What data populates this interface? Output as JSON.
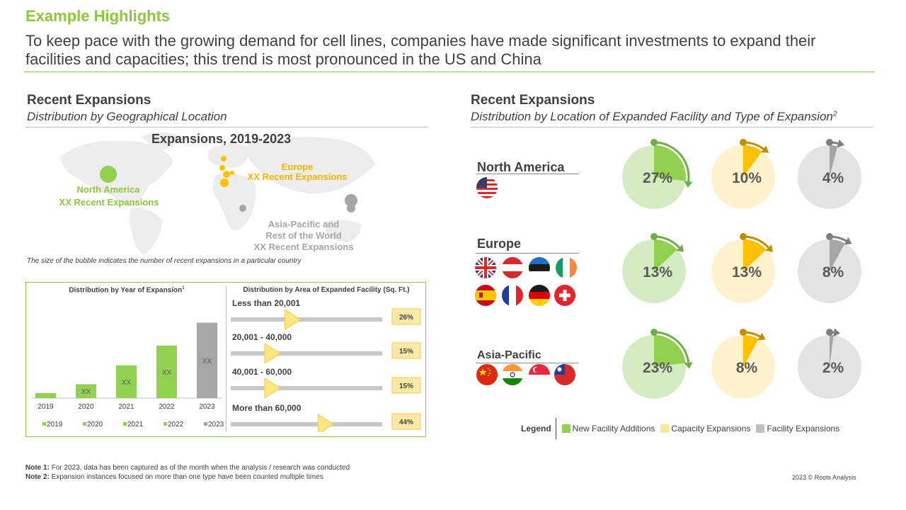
{
  "header": {
    "kicker": "Example Highlights",
    "headline": "To keep pace with the growing demand for cell lines, companies have made significant investments to expand their facilities and capacities; this trend is most pronounced in the US and China"
  },
  "left": {
    "title": "Recent Expansions",
    "subtitle": "Distribution by Geographical Location",
    "map": {
      "title": "Expansions, 2019-2023",
      "north_america": {
        "name": "North America",
        "count": "XX Recent Expansions"
      },
      "europe": {
        "name": "Europe",
        "count": "XX Recent Expansions"
      },
      "asia_pacific": {
        "line1": "Asia-Pacific and",
        "line2": "Rest of the World",
        "line3": "XX Recent Expansions"
      },
      "note": "The size of the bubble indicates the number of recent expansions in a particular country"
    },
    "year_chart_title": "Distribution by Year of Expansion",
    "year_chart_title_sup": "1",
    "area_chart_title": "Distribution by Area of Expanded Facility (Sq. Ft.)"
  },
  "right": {
    "title": "Recent Expansions",
    "subtitle": "Distribution by Location of Expanded Facility and Type of Expansion",
    "subtitle_sup": "2",
    "regions": {
      "north_america": "North America",
      "europe": "Europe",
      "asia_pacific": "Asia-Pacific"
    },
    "legend": {
      "title": "Legend",
      "items": [
        {
          "label": "New Facility Additions",
          "color": "#92d050"
        },
        {
          "label": "Capacity Expansions",
          "color": "#ffe699"
        },
        {
          "label": "Facility Expansions",
          "color": "#bfbfbf"
        }
      ]
    }
  },
  "notes": {
    "note1_label": "Note 1:",
    "note1_text": "For 2023, data has been captured as of the month when the analysis / research was conducted",
    "note2_label": "Note 2:",
    "note2_text": "Expansion instances focused on more than one type have been counted multiple times"
  },
  "copyright": "2023 © Roots Analysis",
  "colors": {
    "green": "#92d050",
    "green_dark": "#70ad47",
    "yellow": "#ffc000",
    "yellow_light": "#fff2cc",
    "gray": "#a6a6a6",
    "gray_light": "#d9d9d9",
    "accent": "#8dc63f"
  },
  "chart_data": [
    {
      "id": "year",
      "type": "bar",
      "categories": [
        "2019",
        "2020",
        "2021",
        "2022",
        "2023"
      ],
      "values": [
        5,
        14,
        33,
        53,
        76
      ],
      "value_labels": [
        "",
        "XX",
        "XX",
        "XX",
        "XX"
      ],
      "colors": [
        "#92d050",
        "#92d050",
        "#92d050",
        "#92d050",
        "#a6a6a6"
      ],
      "legend": [
        "2019",
        "2020",
        "2021",
        "2022",
        "2023"
      ],
      "ylim": [
        0,
        80
      ]
    },
    {
      "id": "area",
      "type": "bar",
      "orientation": "horizontal",
      "categories": [
        "Less than 20,001",
        "20,001 - 40,000",
        "40,001 - 60,000",
        "More than 60,000"
      ],
      "values": [
        26,
        15,
        15,
        44
      ],
      "value_labels": [
        "26%",
        "15%",
        "15%",
        "44%"
      ],
      "xlim": [
        0,
        100
      ]
    },
    {
      "id": "location_type",
      "type": "pie",
      "rows": [
        "North America",
        "Europe",
        "Asia-Pacific"
      ],
      "series": [
        {
          "name": "New Facility Additions",
          "values": [
            27,
            13,
            23
          ]
        },
        {
          "name": "Capacity Expansions",
          "values": [
            10,
            13,
            8
          ]
        },
        {
          "name": "Facility Expansions",
          "values": [
            4,
            8,
            2
          ]
        }
      ],
      "value_labels": [
        [
          "27%",
          "10%",
          "4%"
        ],
        [
          "13%",
          "13%",
          "8%"
        ],
        [
          "23%",
          "8%",
          "2%"
        ]
      ]
    }
  ]
}
